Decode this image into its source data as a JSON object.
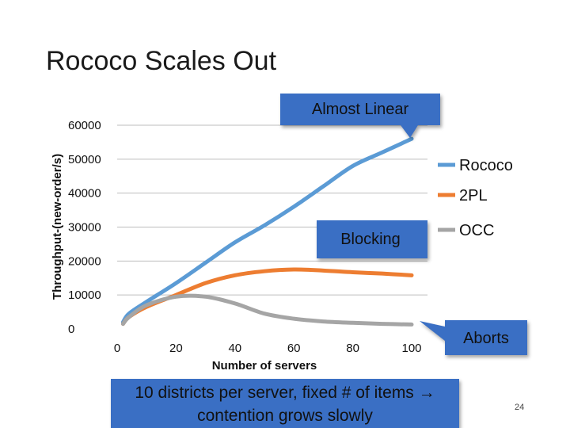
{
  "slide": {
    "title": "Rococo Scales Out",
    "footer_line1": "10 districts per server, fixed # of items →",
    "footer_line2": "contention grows slowly",
    "number": "24"
  },
  "callouts": {
    "top": "Almost Linear",
    "middle": "Blocking",
    "right": "Aborts",
    "fill_color": "#3a6fc4"
  },
  "chart_data": {
    "type": "line",
    "xlabel": "Number of servers",
    "ylabel": "Throughput-(new-order/s)",
    "xlim": [
      0,
      100
    ],
    "ylim": [
      0,
      60000
    ],
    "x_ticks": [
      "0",
      "20",
      "40",
      "60",
      "80",
      "100"
    ],
    "y_ticks": [
      "0",
      "10000",
      "20000",
      "30000",
      "40000",
      "50000",
      "60000"
    ],
    "grid": "horizontal",
    "legend_position": "right",
    "series": [
      {
        "name": "Rococo",
        "color": "#5b9bd5",
        "x": [
          2,
          4,
          10,
          20,
          30,
          40,
          50,
          60,
          70,
          80,
          90,
          100
        ],
        "y": [
          2000,
          4500,
          8000,
          13500,
          19500,
          25500,
          30500,
          36000,
          42000,
          48000,
          52000,
          56000
        ]
      },
      {
        "name": "2PL",
        "color": "#ed7d31",
        "x": [
          2,
          4,
          10,
          20,
          30,
          40,
          50,
          60,
          70,
          80,
          90,
          100
        ],
        "y": [
          1500,
          3500,
          6500,
          10000,
          13500,
          15800,
          17000,
          17500,
          17200,
          16700,
          16300,
          15800
        ]
      },
      {
        "name": "OCC",
        "color": "#a5a5a5",
        "x": [
          2,
          4,
          10,
          20,
          30,
          40,
          50,
          60,
          70,
          80,
          90,
          100
        ],
        "y": [
          1500,
          3500,
          7000,
          9500,
          9500,
          7500,
          4500,
          3000,
          2200,
          1800,
          1500,
          1300
        ]
      }
    ]
  }
}
